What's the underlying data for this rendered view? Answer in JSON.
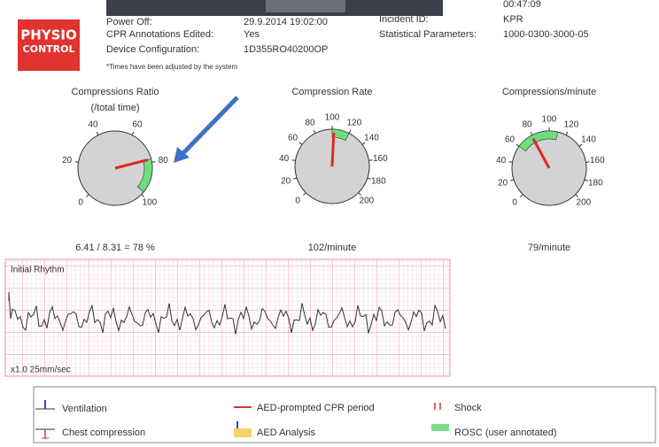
{
  "logo": {
    "line1": "PHYSIO",
    "line2": "CONTROL"
  },
  "info_left": [
    {
      "label": "Power Off:",
      "value": "29.9.2014 19:02:00"
    },
    {
      "label": "CPR Annotations Edited:",
      "value": "Yes"
    },
    {
      "label": "Device Configuration:",
      "value": "1D355RO40200OP"
    }
  ],
  "note": "*Times have been adjusted by the system",
  "info_right": [
    {
      "value": "00:47:09"
    },
    {
      "label": "Incident ID:",
      "value": "KPR"
    },
    {
      "label": "Statistical Parameters:",
      "value": "1000-0300-3000-05"
    }
  ],
  "gauges": [
    {
      "title": "Compressions Ratio",
      "subtitle": "(/total time)",
      "range": [
        0,
        100
      ],
      "ticks": [
        0,
        20,
        40,
        60,
        80,
        100
      ],
      "band": [
        78,
        98
      ],
      "value": 78,
      "summary": "6.41 / 8.31 = 78 %"
    },
    {
      "title": "Compression Rate",
      "range": [
        0,
        200
      ],
      "ticks": [
        0,
        20,
        40,
        60,
        80,
        100,
        120,
        140,
        160,
        180,
        200
      ],
      "band": [
        100,
        120
      ],
      "value": 102,
      "summary": "102/minute"
    },
    {
      "title": "Compressions/minute",
      "range": [
        0,
        200
      ],
      "ticks": [
        0,
        20,
        40,
        60,
        80,
        100,
        120,
        140,
        160,
        180,
        200
      ],
      "band": [
        60,
        110
      ],
      "value": 79,
      "summary": "79/minute"
    }
  ],
  "ecg": {
    "label": "Initial Rhythm",
    "speed": "x1.0 25mm/sec"
  },
  "legend": {
    "ventilation": "Ventilation",
    "cpr_period": "AED-prompted CPR period",
    "shock": "Shock",
    "chest_compression": "Chest compression",
    "aed_analysis": "AED Analysis",
    "rosc": "ROSC (user annotated)"
  }
}
